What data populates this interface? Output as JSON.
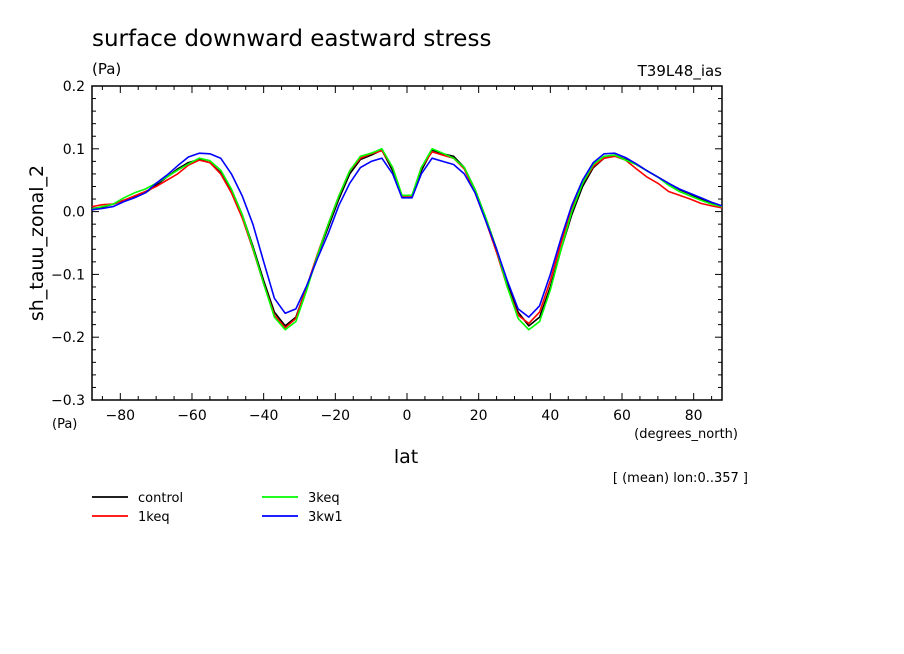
{
  "chart_data": {
    "type": "line",
    "title": "surface downward eastward stress",
    "units": "(Pa)",
    "experiment": "T39L48_ias",
    "ylabel": "sh_tauu_zonal_2",
    "yunits": "(Pa)",
    "xlabel": "lat",
    "xunits": "(degrees_north)",
    "annotation": "[ (mean) lon:0..357 ]",
    "xlim": [
      -87.9,
      87.9
    ],
    "ylim": [
      -0.3,
      0.2
    ],
    "xticks": [
      -80,
      -60,
      -40,
      -20,
      0,
      20,
      40,
      60,
      80
    ],
    "xtick_labels": [
      "−80",
      "−60",
      "−40",
      "−20",
      "0",
      "20",
      "40",
      "60",
      "80"
    ],
    "yticks": [
      0.2,
      0.1,
      0.0,
      -0.1,
      -0.2,
      -0.3
    ],
    "ytick_labels": [
      "0.2",
      "0.1",
      "0.0",
      "−0.1",
      "−0.2",
      "−0.3"
    ],
    "x": [
      -87.9,
      -85,
      -82,
      -79,
      -76,
      -73,
      -70,
      -67,
      -64,
      -61,
      -58,
      -55,
      -52,
      -49,
      -46,
      -43,
      -40,
      -37,
      -34,
      -31,
      -28,
      -25,
      -22,
      -19,
      -16,
      -13,
      -10,
      -7,
      -4,
      -1.4,
      1.4,
      4,
      7,
      10,
      13,
      16,
      19,
      22,
      25,
      28,
      31,
      34,
      37,
      40,
      43,
      46,
      49,
      52,
      55,
      58,
      61,
      64,
      67,
      70,
      73,
      76,
      79,
      82,
      85,
      87.9
    ],
    "series": [
      {
        "name": "control",
        "color": "#000000",
        "values": [
          0.005,
          0.007,
          0.012,
          0.018,
          0.023,
          0.03,
          0.042,
          0.055,
          0.068,
          0.078,
          0.083,
          0.078,
          0.062,
          0.035,
          -0.005,
          -0.055,
          -0.11,
          -0.16,
          -0.182,
          -0.168,
          -0.12,
          -0.07,
          -0.025,
          0.02,
          0.06,
          0.083,
          0.09,
          0.098,
          0.065,
          0.025,
          0.025,
          0.065,
          0.098,
          0.092,
          0.088,
          0.07,
          0.035,
          -0.01,
          -0.06,
          -0.115,
          -0.16,
          -0.182,
          -0.168,
          -0.12,
          -0.06,
          -0.005,
          0.04,
          0.07,
          0.085,
          0.09,
          0.083,
          0.075,
          0.065,
          0.055,
          0.045,
          0.035,
          0.028,
          0.02,
          0.013,
          0.008
        ]
      },
      {
        "name": "1keq",
        "color": "#ff0000",
        "values": [
          0.008,
          0.011,
          0.012,
          0.018,
          0.025,
          0.032,
          0.04,
          0.05,
          0.06,
          0.074,
          0.082,
          0.078,
          0.06,
          0.03,
          -0.01,
          -0.06,
          -0.115,
          -0.165,
          -0.185,
          -0.17,
          -0.12,
          -0.068,
          -0.02,
          0.025,
          0.065,
          0.085,
          0.092,
          0.097,
          0.07,
          0.025,
          0.025,
          0.07,
          0.095,
          0.09,
          0.085,
          0.068,
          0.03,
          -0.015,
          -0.065,
          -0.12,
          -0.165,
          -0.178,
          -0.16,
          -0.11,
          -0.05,
          0.005,
          0.045,
          0.072,
          0.085,
          0.088,
          0.082,
          0.068,
          0.055,
          0.045,
          0.032,
          0.026,
          0.02,
          0.013,
          0.009,
          0.006
        ]
      },
      {
        "name": "3keq",
        "color": "#00ff00",
        "values": [
          0.004,
          0.008,
          0.012,
          0.022,
          0.03,
          0.036,
          0.045,
          0.055,
          0.066,
          0.076,
          0.085,
          0.081,
          0.066,
          0.036,
          -0.005,
          -0.058,
          -0.115,
          -0.168,
          -0.188,
          -0.175,
          -0.125,
          -0.07,
          -0.02,
          0.025,
          0.065,
          0.088,
          0.093,
          0.1,
          0.07,
          0.026,
          0.026,
          0.07,
          0.1,
          0.093,
          0.085,
          0.07,
          0.035,
          -0.01,
          -0.06,
          -0.12,
          -0.17,
          -0.188,
          -0.175,
          -0.125,
          -0.06,
          0.0,
          0.045,
          0.075,
          0.088,
          0.09,
          0.082,
          0.075,
          0.065,
          0.055,
          0.042,
          0.032,
          0.025,
          0.018,
          0.012,
          0.008
        ]
      },
      {
        "name": "3kw1",
        "color": "#0000ff",
        "values": [
          0.003,
          0.005,
          0.008,
          0.016,
          0.022,
          0.03,
          0.045,
          0.058,
          0.073,
          0.087,
          0.093,
          0.092,
          0.085,
          0.06,
          0.025,
          -0.02,
          -0.08,
          -0.138,
          -0.162,
          -0.155,
          -0.118,
          -0.075,
          -0.035,
          0.01,
          0.045,
          0.07,
          0.08,
          0.085,
          0.06,
          0.022,
          0.022,
          0.06,
          0.085,
          0.08,
          0.075,
          0.06,
          0.03,
          -0.015,
          -0.06,
          -0.11,
          -0.155,
          -0.168,
          -0.15,
          -0.1,
          -0.042,
          0.01,
          0.05,
          0.078,
          0.092,
          0.093,
          0.086,
          0.076,
          0.065,
          0.055,
          0.045,
          0.036,
          0.029,
          0.022,
          0.015,
          0.009
        ]
      }
    ]
  }
}
